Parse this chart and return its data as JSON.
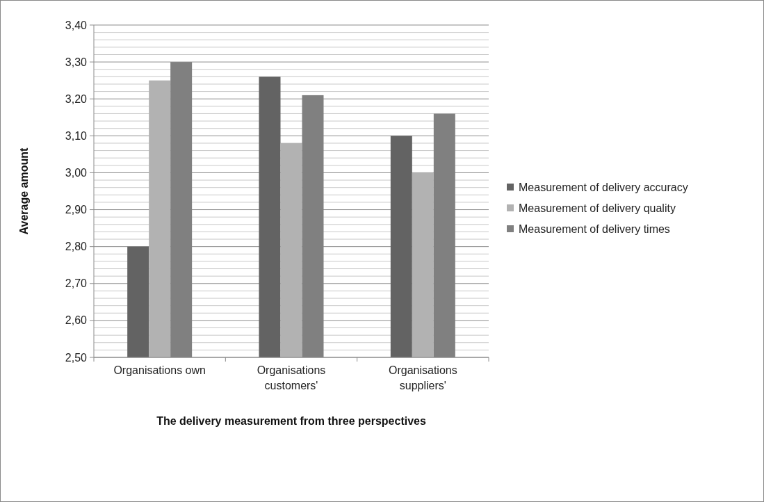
{
  "chart_data": {
    "type": "bar",
    "xlabel": "The delivery measurement from three perspectives",
    "ylabel": "Average amount",
    "categories": [
      "Organisations own",
      "Organisations customers'",
      "Organisations suppliers'"
    ],
    "series": [
      {
        "name": "Measurement of delivery accuracy",
        "color": "#636363",
        "values": [
          2.8,
          3.26,
          3.1
        ]
      },
      {
        "name": "Measurement of delivery quality",
        "color": "#b2b2b2",
        "values": [
          3.25,
          3.08,
          3.0
        ]
      },
      {
        "name": "Measurement of delivery times",
        "color": "#808080",
        "values": [
          3.3,
          3.21,
          3.16
        ]
      }
    ],
    "ylim": [
      2.5,
      3.4
    ],
    "yticks": [
      {
        "value": 2.5,
        "label": "2,50"
      },
      {
        "value": 2.52,
        "label": null
      },
      {
        "value": 2.54,
        "label": null
      },
      {
        "value": 2.56,
        "label": null
      },
      {
        "value": 2.58,
        "label": null
      },
      {
        "value": 2.6,
        "label": "2,60"
      },
      {
        "value": 2.62,
        "label": null
      },
      {
        "value": 2.64,
        "label": null
      },
      {
        "value": 2.66,
        "label": null
      },
      {
        "value": 2.68,
        "label": null
      },
      {
        "value": 2.7,
        "label": "2,70"
      },
      {
        "value": 2.72,
        "label": null
      },
      {
        "value": 2.74,
        "label": null
      },
      {
        "value": 2.76,
        "label": null
      },
      {
        "value": 2.78,
        "label": null
      },
      {
        "value": 2.8,
        "label": "2,80"
      },
      {
        "value": 2.82,
        "label": null
      },
      {
        "value": 2.84,
        "label": null
      },
      {
        "value": 2.86,
        "label": null
      },
      {
        "value": 2.88,
        "label": null
      },
      {
        "value": 2.9,
        "label": "2,90"
      },
      {
        "value": 2.92,
        "label": null
      },
      {
        "value": 2.94,
        "label": null
      },
      {
        "value": 2.96,
        "label": null
      },
      {
        "value": 2.98,
        "label": null
      },
      {
        "value": 3.0,
        "label": "3,00"
      },
      {
        "value": 3.02,
        "label": null
      },
      {
        "value": 3.04,
        "label": null
      },
      {
        "value": 3.06,
        "label": null
      },
      {
        "value": 3.08,
        "label": null
      },
      {
        "value": 3.1,
        "label": "3,10"
      },
      {
        "value": 3.12,
        "label": null
      },
      {
        "value": 3.14,
        "label": null
      },
      {
        "value": 3.16,
        "label": null
      },
      {
        "value": 3.18,
        "label": null
      },
      {
        "value": 3.2,
        "label": "3,20"
      },
      {
        "value": 3.22,
        "label": null
      },
      {
        "value": 3.24,
        "label": null
      },
      {
        "value": 3.26,
        "label": null
      },
      {
        "value": 3.28,
        "label": null
      },
      {
        "value": 3.3,
        "label": "3,30"
      },
      {
        "value": 3.32,
        "label": null
      },
      {
        "value": 3.34,
        "label": null
      },
      {
        "value": 3.36,
        "label": null
      },
      {
        "value": 3.38,
        "label": null
      },
      {
        "value": 3.4,
        "label": "3,40"
      }
    ],
    "grid": "y",
    "legend": "right"
  }
}
